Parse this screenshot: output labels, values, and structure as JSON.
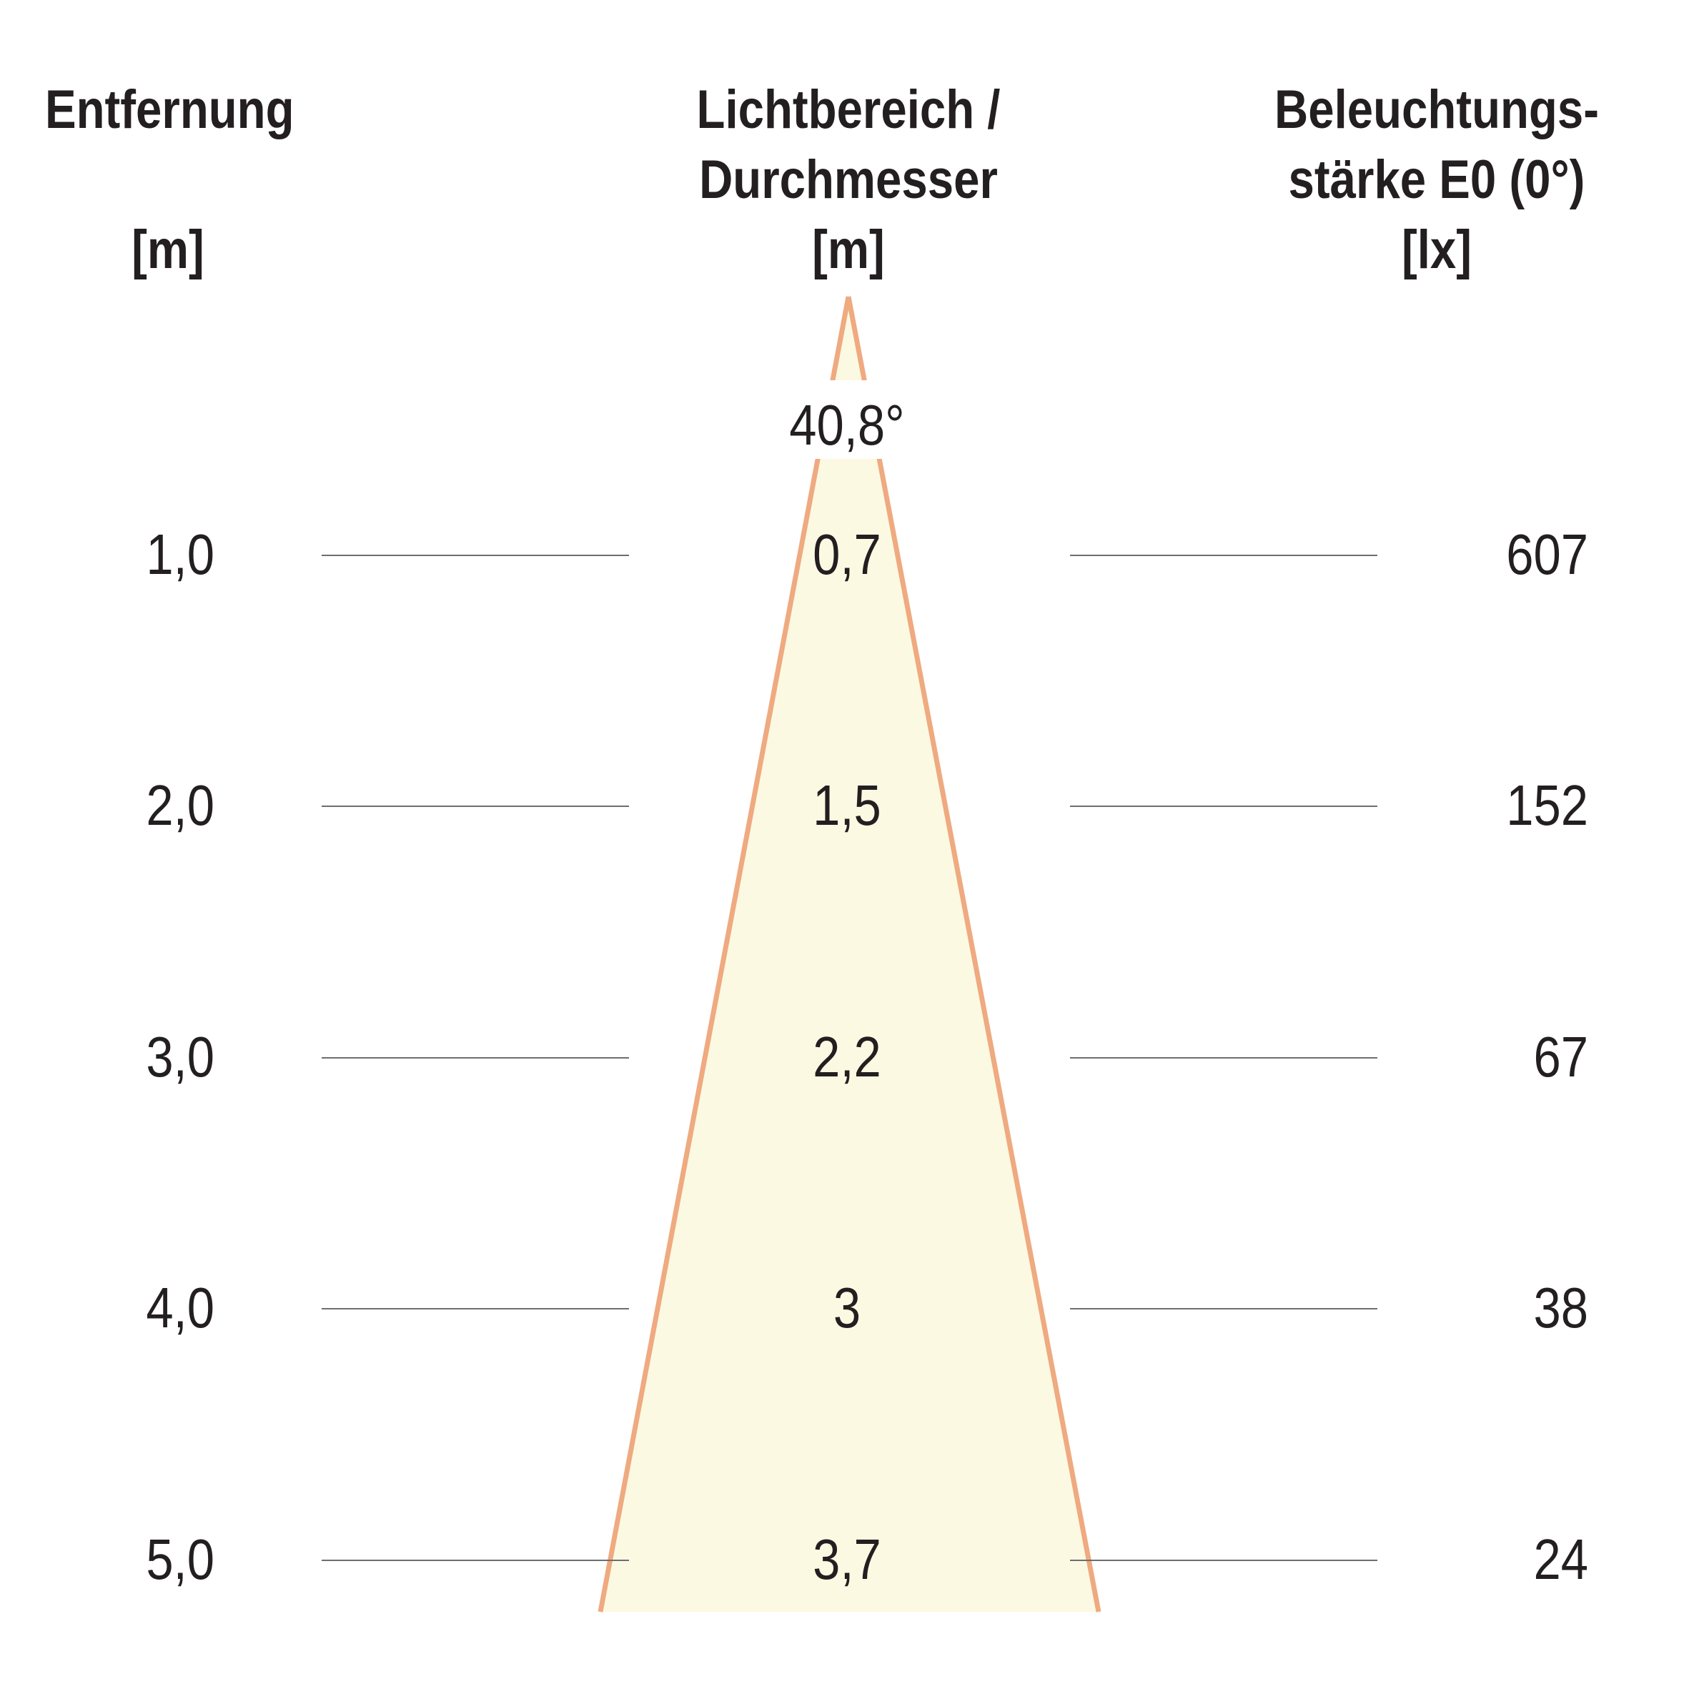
{
  "headers": {
    "distance": [
      "Entfernung",
      "",
      "[m]"
    ],
    "diameter": [
      "Lichtbereich /",
      "Durchmesser",
      "[m]"
    ],
    "illuminance": [
      "Beleuchtungs-",
      "stärke E0 (0°)",
      "[lx]"
    ]
  },
  "beam_angle": "40,8°",
  "rows": [
    {
      "distance": "1,0",
      "diameter": "0,7",
      "illuminance": "607"
    },
    {
      "distance": "2,0",
      "diameter": "1,5",
      "illuminance": "152"
    },
    {
      "distance": "3,0",
      "diameter": "2,2",
      "illuminance": "67"
    },
    {
      "distance": "4,0",
      "diameter": "3",
      "illuminance": "38"
    },
    {
      "distance": "5,0",
      "diameter": "3,7",
      "illuminance": "24"
    }
  ],
  "colors": {
    "cone_fill": "#fcf9e3",
    "cone_stroke": "#efaa80",
    "line": "#6d6e71",
    "text": "#231f20"
  }
}
